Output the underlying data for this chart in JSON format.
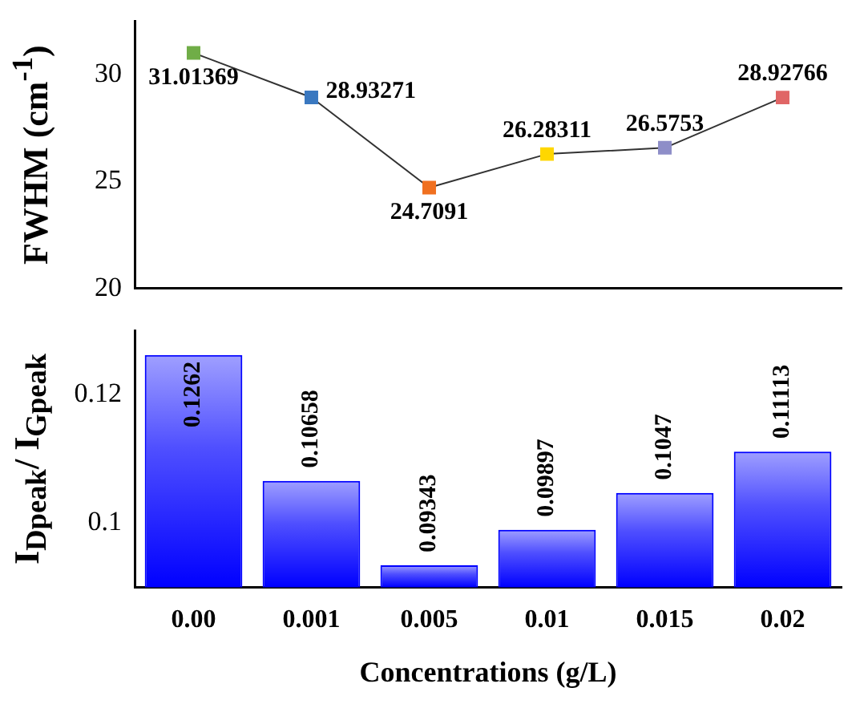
{
  "chart_data": [
    {
      "type": "line",
      "ylabel": "FWHM (cm$^{-1}$)",
      "categories": [
        "0.00",
        "0.001",
        "0.005",
        "0.01",
        "0.015",
        "0.02"
      ],
      "values": [
        31.01369,
        28.93271,
        24.7091,
        26.28311,
        26.5753,
        28.92766
      ],
      "color": "#333333",
      "colors": [
        "#70ad47",
        "#3a78c0",
        "#f07020",
        "#ffd700",
        "#8e8ec8",
        "#e06666"
      ],
      "marker": "square",
      "data_labels": true,
      "ylim": [
        20,
        32.5
      ],
      "yticks": [
        20,
        25,
        30
      ],
      "tick_labels": "y"
    },
    {
      "type": "bar",
      "ylabel": "I$_{Dpeak}$/ I$_{Gpeak}$",
      "xlabel": "Concentrations (g/L)",
      "categories": [
        "0.00",
        "0.001",
        "0.005",
        "0.01",
        "0.015",
        "0.02"
      ],
      "values": [
        0.1262,
        0.10658,
        0.09343,
        0.09897,
        0.1047,
        0.11113
      ],
      "color": "#0000ff",
      "data_labels": true,
      "ylim": [
        0.09,
        0.13
      ],
      "yticks": [
        0.1,
        0.12
      ]
    }
  ]
}
